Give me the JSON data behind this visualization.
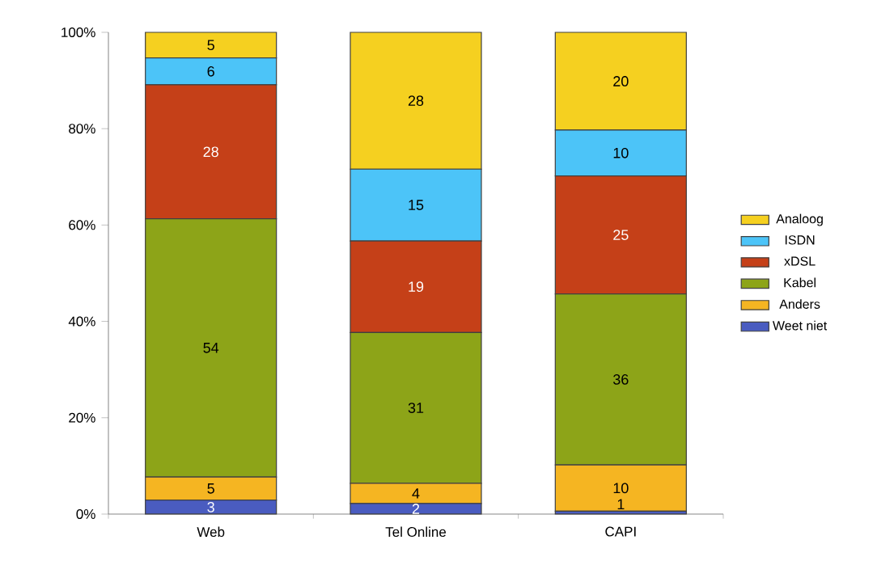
{
  "chart_data": {
    "type": "bar",
    "stacked": true,
    "categories": [
      "Web",
      "Tel Online",
      "CAPI"
    ],
    "series": [
      {
        "name": "Weet niet",
        "color": "#4a5cc0",
        "values": [
          2.9,
          2.2,
          0.6
        ],
        "value_labels": [
          "3",
          "2",
          "1"
        ]
      },
      {
        "name": "Anders",
        "color": "#f5b522",
        "values": [
          4.8,
          4.2,
          9.6
        ],
        "value_labels": [
          "5",
          "4",
          "10"
        ]
      },
      {
        "name": "Kabel",
        "color": "#8da418",
        "values": [
          53.6,
          31.3,
          35.5
        ],
        "value_labels": [
          "54",
          "31",
          "36"
        ]
      },
      {
        "name": "xDSL",
        "color": "#c54018",
        "values": [
          27.8,
          19.0,
          24.5
        ],
        "value_labels": [
          "28",
          "19",
          "25"
        ]
      },
      {
        "name": "ISDN",
        "color": "#4cc4f8",
        "values": [
          5.6,
          14.9,
          9.5
        ],
        "value_labels": [
          "6",
          "15",
          "10"
        ]
      },
      {
        "name": "Analoog",
        "color": "#f5d020",
        "values": [
          5.3,
          28.4,
          20.3
        ],
        "value_labels": [
          "5",
          "28",
          "20"
        ]
      }
    ],
    "ylim": [
      0,
      100
    ],
    "yticks": [
      {
        "value": 0,
        "label": "0%"
      },
      {
        "value": 20,
        "label": "20%"
      },
      {
        "value": 40,
        "label": "40%"
      },
      {
        "value": 60,
        "label": "60%"
      },
      {
        "value": 80,
        "label": "80%"
      },
      {
        "value": 100,
        "label": "100%"
      }
    ],
    "legend": "right"
  }
}
